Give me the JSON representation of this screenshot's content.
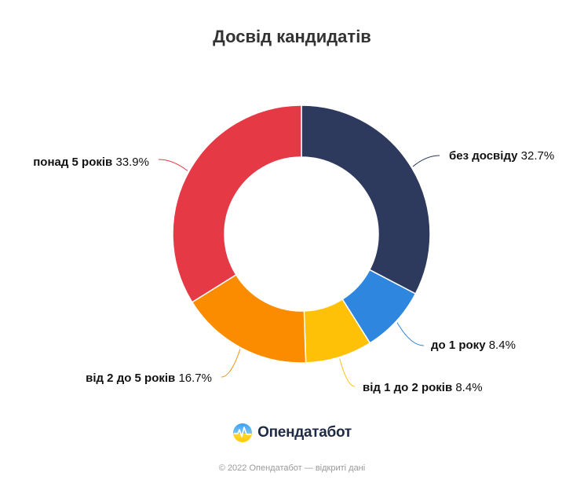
{
  "title": "Досвід кандидатів",
  "chart_data": {
    "type": "pie",
    "variant": "donut",
    "title": "Досвід кандидатів",
    "slices": [
      {
        "label": "без досвіду",
        "value": 32.7,
        "display": "32.7%",
        "color": "#2d3a5e"
      },
      {
        "label": "до 1 року",
        "value": 8.4,
        "display": "8.4%",
        "color": "#2e86de"
      },
      {
        "label": "від 1 до 2 років",
        "value": 8.4,
        "display": "8.4%",
        "color": "#ffc107"
      },
      {
        "label": "від 2 до 5 років",
        "value": 16.7,
        "display": "16.7%",
        "color": "#fb8c00"
      },
      {
        "label": "понад 5 років",
        "value": 33.9,
        "display": "33.9%",
        "color": "#e53945"
      }
    ],
    "start_angle_deg": 0,
    "direction": "clockwise"
  },
  "logo": {
    "text": "Опендатабот",
    "icon": "opendatabot-logo-icon"
  },
  "footer": "© 2022 Опендатабот — відкриті дані"
}
